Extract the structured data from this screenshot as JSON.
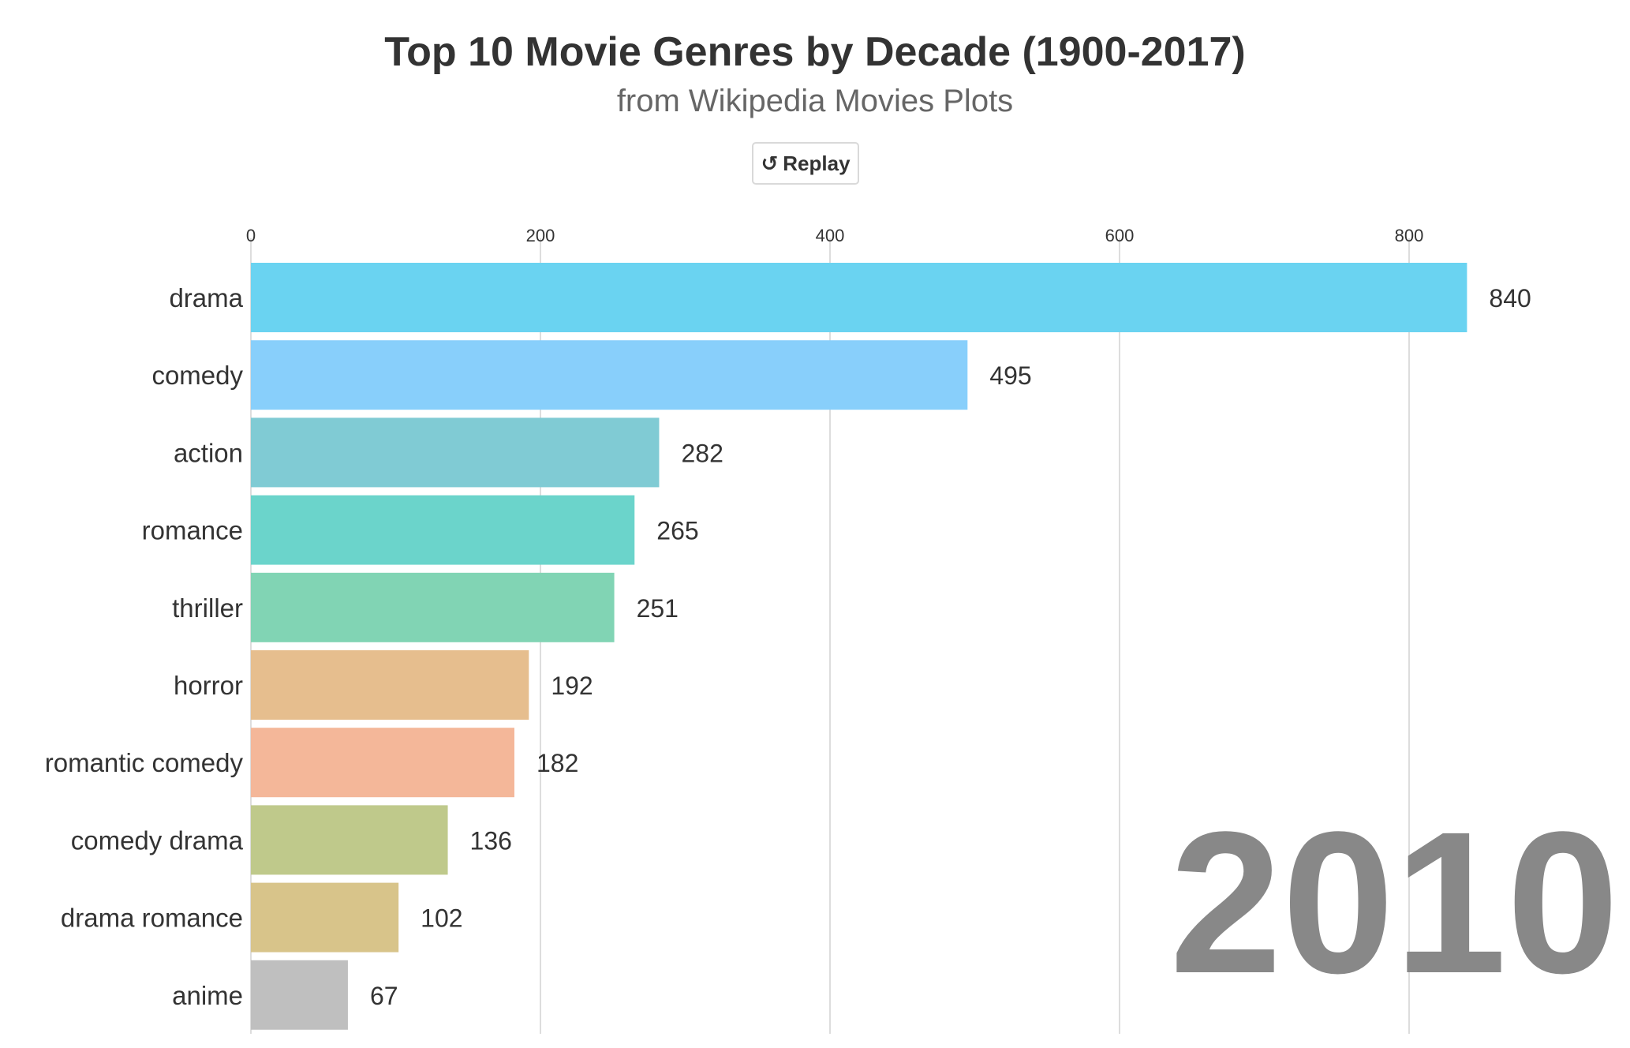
{
  "header": {
    "title": "Top 10 Movie Genres by Decade (1900-2017)",
    "subtitle": "from Wikipedia Movies Plots"
  },
  "controls": {
    "replay_label": "Replay",
    "replay_icon": "replay-icon"
  },
  "chart_data": {
    "type": "bar",
    "orientation": "horizontal",
    "title": "Top 10 Movie Genres by Decade (1900-2017)",
    "subtitle": "from Wikipedia Movies Plots",
    "year": "2010",
    "categories": [
      "drama",
      "comedy",
      "action",
      "romance",
      "thriller",
      "horror",
      "romantic comedy",
      "comedy drama",
      "drama romance",
      "anime"
    ],
    "values": [
      840,
      495,
      282,
      265,
      251,
      192,
      182,
      136,
      102,
      67
    ],
    "colors": [
      "#6AD3F1",
      "#88CFFB",
      "#80CBD4",
      "#6BD4CB",
      "#81D4B4",
      "#E6BE8E",
      "#F4B799",
      "#BFC98B",
      "#D8C48A",
      "#BFBFBF"
    ],
    "xticks": [
      0,
      200,
      400,
      600,
      800
    ],
    "xlim": [
      0,
      840
    ],
    "axis_position": "top",
    "grid": true,
    "gridline_color": "#DDDDDD"
  }
}
